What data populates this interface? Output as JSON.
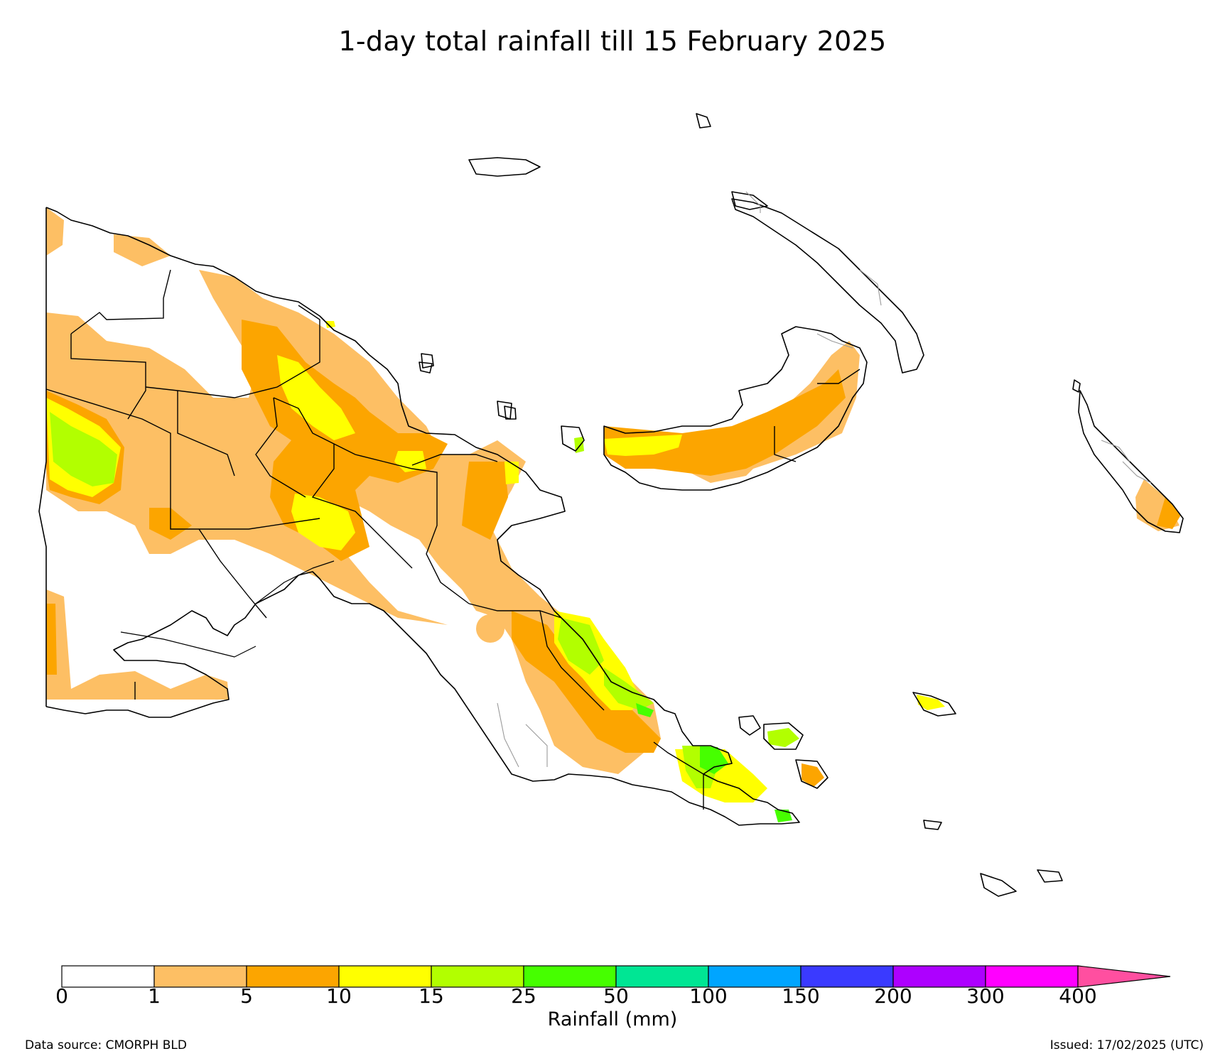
{
  "title": "1-day total rainfall till 15 February 2025",
  "legend": {
    "axis_label": "Rainfall (mm)",
    "ticks": [
      "0",
      "1",
      "5",
      "10",
      "15",
      "25",
      "50",
      "100",
      "150",
      "200",
      "300",
      "400"
    ],
    "colors": [
      "#ffffff",
      "#fdbf64",
      "#fca500",
      "#ffff00",
      "#b2ff00",
      "#46ff00",
      "#00e694",
      "#00a5ff",
      "#3a3aff",
      "#ad00ff",
      "#ff00ff"
    ],
    "extend_color": "#ff4fa0"
  },
  "footer": {
    "data_source": "Data source: CMORPH BLD",
    "issued": "Issued: 17/02/2025 (UTC)"
  },
  "map": {
    "region": "Papua New Guinea",
    "colors": {
      "land_outline": "#000000",
      "province_border": "#000000",
      "district_border": "#9a9a9a",
      "c1_5": "#fdbf64",
      "c5_10": "#fca500",
      "c10_15": "#ffff00",
      "c15_25": "#b2ff00",
      "c25_50": "#46ff00"
    }
  }
}
